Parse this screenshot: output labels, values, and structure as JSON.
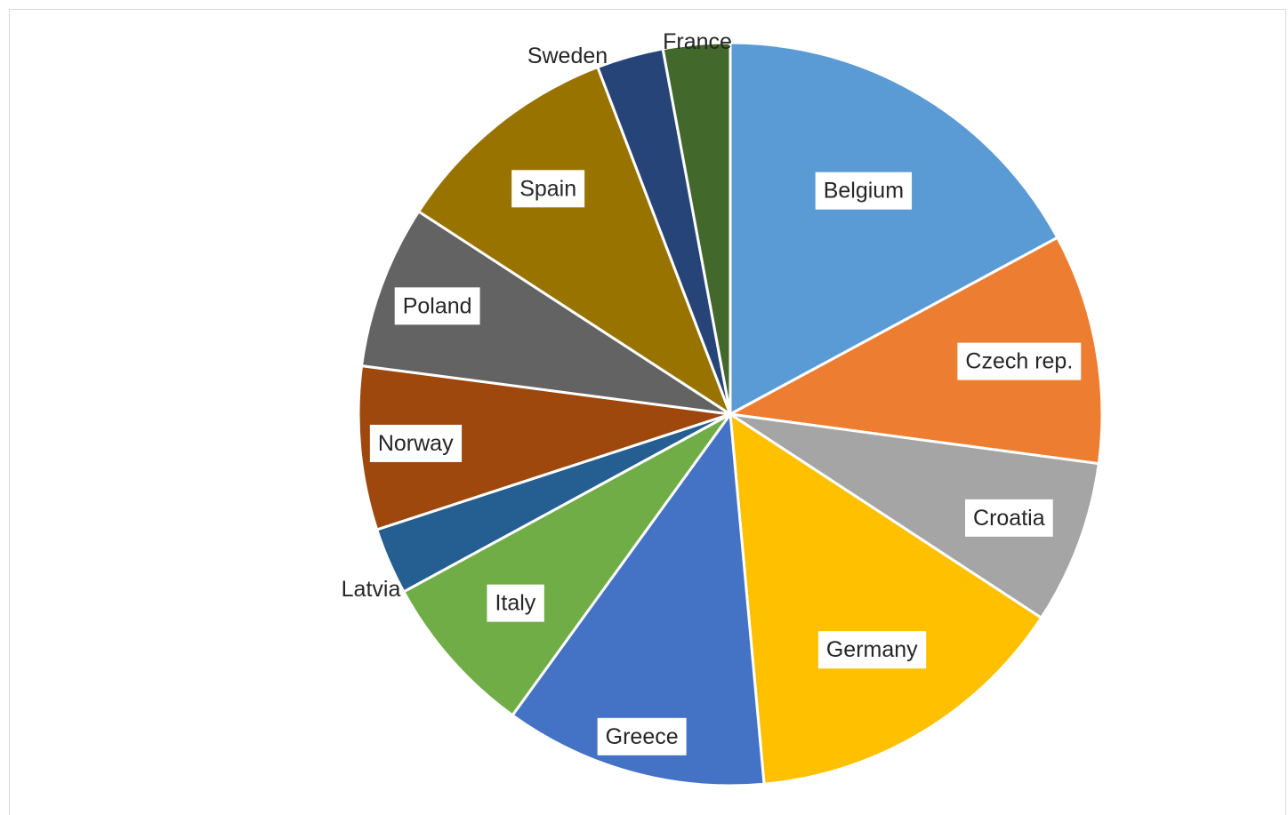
{
  "chart_data": {
    "type": "pie",
    "title": "",
    "start_angle_deg": 0,
    "direction": "clockwise",
    "slices": [
      {
        "label": "Belgium",
        "value": 17.1,
        "color": "#5B9BD5",
        "label_boxed": true
      },
      {
        "label": "Czech rep.",
        "value": 10.0,
        "color": "#ED7D31",
        "label_boxed": true
      },
      {
        "label": "Croatia",
        "value": 7.1,
        "color": "#A5A5A5",
        "label_boxed": true
      },
      {
        "label": "Germany",
        "value": 14.3,
        "color": "#FFC000",
        "label_boxed": true
      },
      {
        "label": "Greece",
        "value": 11.4,
        "color": "#4472C4",
        "label_boxed": true
      },
      {
        "label": "Italy",
        "value": 7.1,
        "color": "#70AD47",
        "label_boxed": true
      },
      {
        "label": "Latvia",
        "value": 2.9,
        "color": "#255E91",
        "label_boxed": false
      },
      {
        "label": "Norway",
        "value": 7.1,
        "color": "#9E480E",
        "label_boxed": true
      },
      {
        "label": "Poland",
        "value": 7.1,
        "color": "#636363",
        "label_boxed": true
      },
      {
        "label": "Spain",
        "value": 10.0,
        "color": "#997300",
        "label_boxed": true
      },
      {
        "label": "Sweden",
        "value": 2.9,
        "color": "#264478",
        "label_boxed": false
      },
      {
        "label": "France",
        "value": 2.9,
        "color": "#43682B",
        "label_boxed": false
      }
    ]
  }
}
